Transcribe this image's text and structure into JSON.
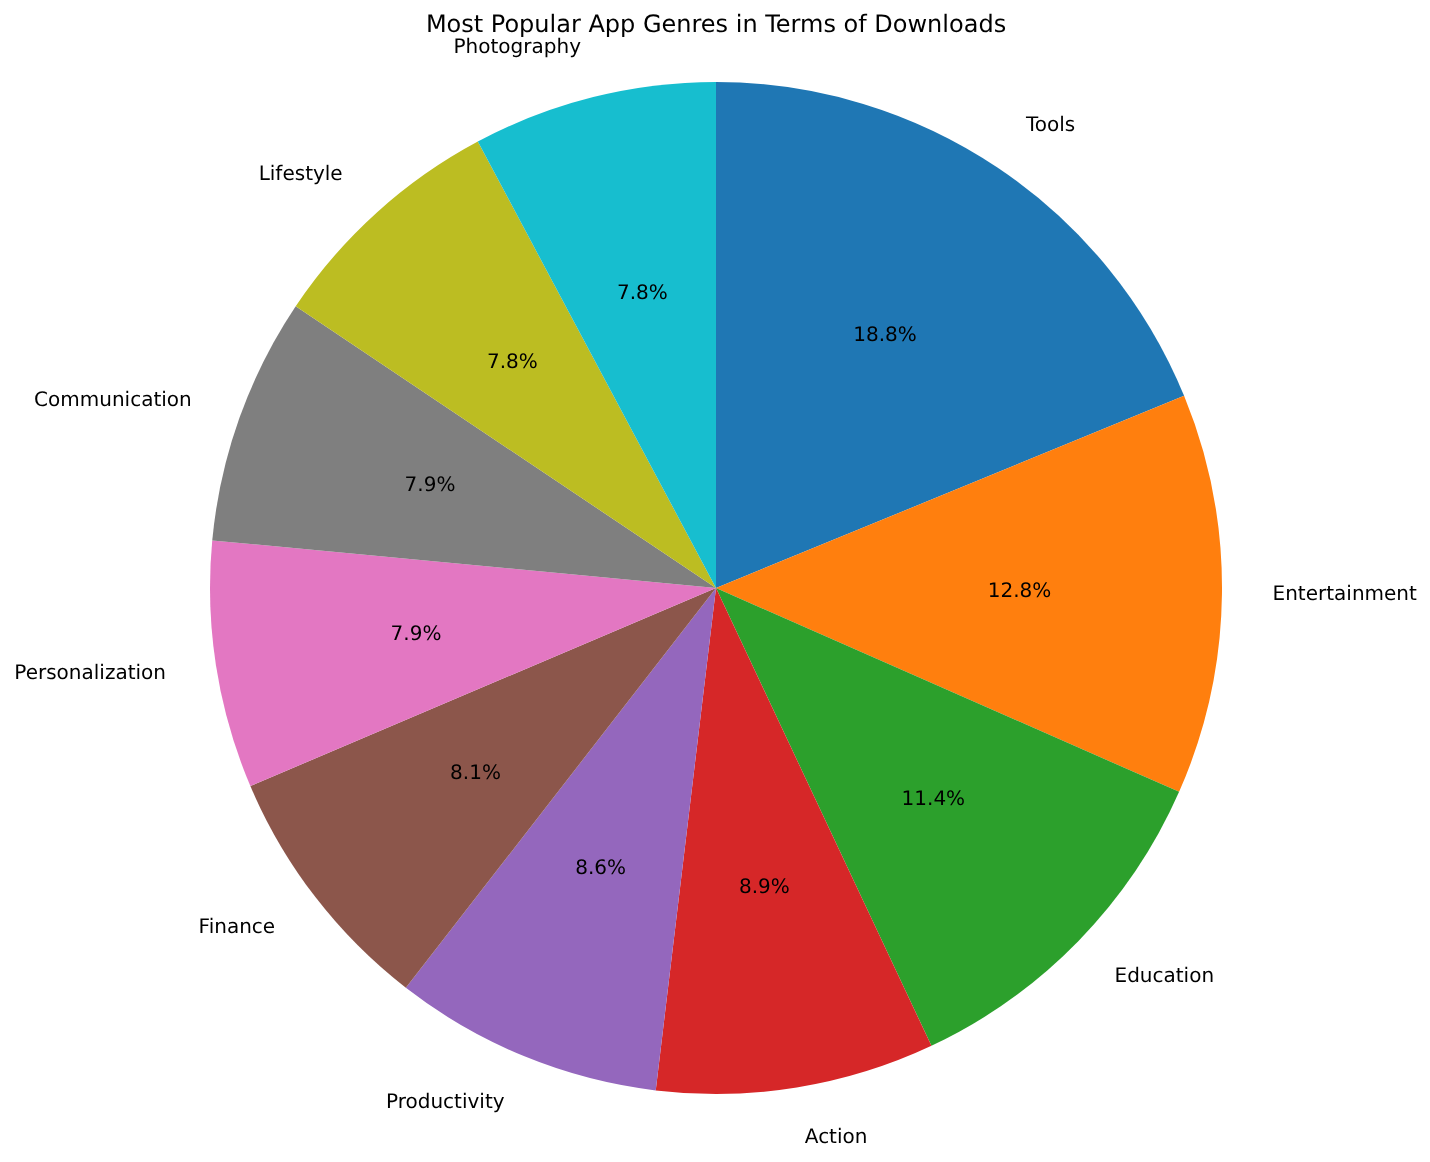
{
  "chart_data": {
    "type": "pie",
    "title": "Most Popular App Genres in Terms of Downloads",
    "categories": [
      "Tools",
      "Entertainment",
      "Education",
      "Action",
      "Productivity",
      "Finance",
      "Personalization",
      "Communication",
      "Lifestyle",
      "Photography"
    ],
    "values": [
      18.8,
      12.8,
      11.4,
      8.9,
      8.6,
      8.1,
      7.9,
      7.9,
      7.8,
      7.8
    ],
    "colors": [
      "#1f77b4",
      "#ff7f0e",
      "#2ca02c",
      "#d62728",
      "#9467bd",
      "#8c564b",
      "#e377c2",
      "#7f7f7f",
      "#bcbd22",
      "#17becf"
    ],
    "value_labels": [
      "18.8%",
      "12.8%",
      "11.4%",
      "8.9%",
      "8.6%",
      "8.1%",
      "7.9%",
      "7.9%",
      "7.8%",
      "7.8%"
    ],
    "legend": false
  }
}
